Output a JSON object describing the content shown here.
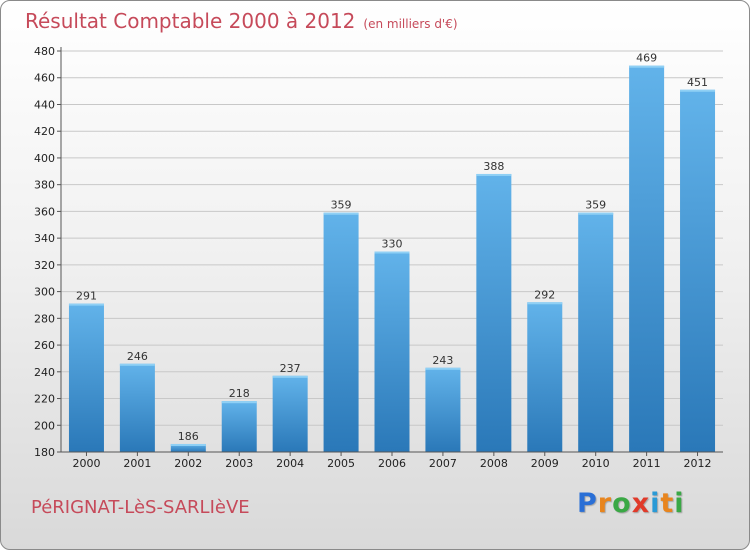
{
  "chart_data": {
    "type": "bar",
    "title": "Résultat Comptable 2000 à 2012",
    "subtitle": "(en milliers d'€)",
    "categories": [
      "2000",
      "2001",
      "2002",
      "2003",
      "2004",
      "2005",
      "2006",
      "2007",
      "2008",
      "2009",
      "2010",
      "2011",
      "2012"
    ],
    "values": [
      291,
      246,
      186,
      218,
      237,
      359,
      330,
      243,
      388,
      292,
      359,
      469,
      451
    ],
    "ylim": [
      180,
      480
    ],
    "yticks": [
      180,
      200,
      220,
      240,
      260,
      280,
      300,
      320,
      340,
      360,
      380,
      400,
      420,
      440,
      460,
      480
    ],
    "grid": true,
    "bar_color_top": "#62b3ea",
    "bar_color_bottom": "#2a78b8",
    "title_color": "#c64a5a"
  },
  "footer": {
    "town": "PéRIGNAT-LèS-SARLIèVE",
    "logo_letters": [
      "P",
      "r",
      "o",
      "x",
      "i",
      "t",
      "i"
    ],
    "logo_colors": [
      "#2a6fd6",
      "#e8851e",
      "#3aa845",
      "#e03a2a",
      "#2a9ad6",
      "#e8851e",
      "#3aa845"
    ]
  }
}
